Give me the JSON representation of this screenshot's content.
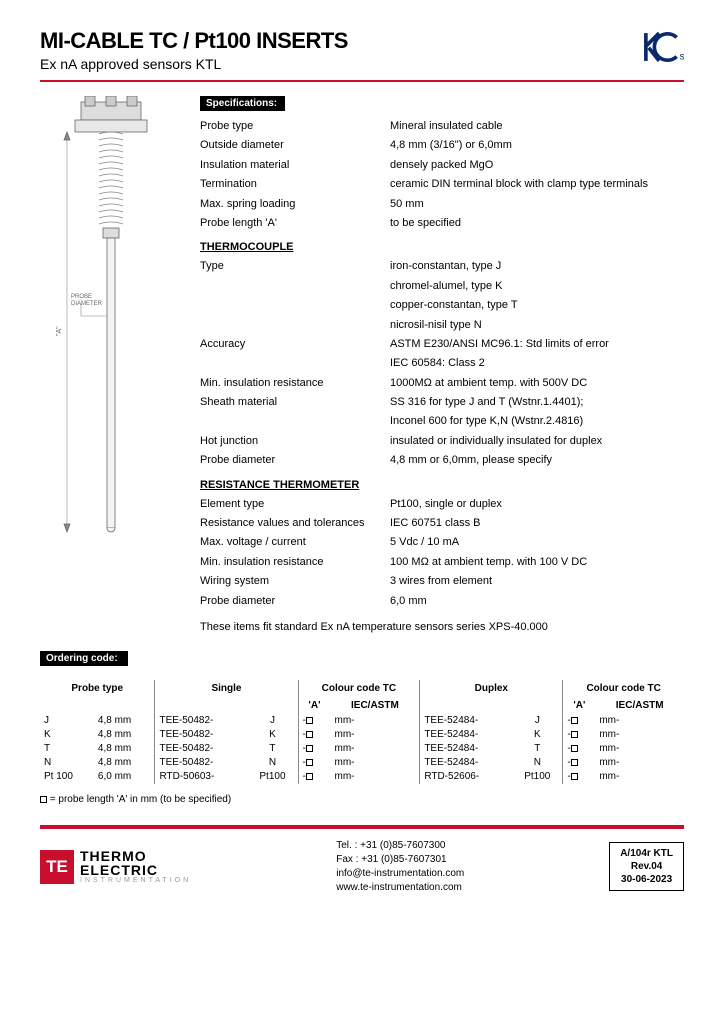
{
  "header": {
    "title": "MI-CABLE TC / Pt100 INSERTS",
    "subtitle": "Ex nA approved sensors KTL"
  },
  "cert": {
    "letters": "KC",
    "suffix": "s",
    "color": "#0a2a6b"
  },
  "specSection": "Specifications:",
  "specs": [
    {
      "l": "Probe type",
      "v": "Mineral insulated cable"
    },
    {
      "l": "Outside diameter",
      "v": "4,8 mm (3/16\") or 6,0mm"
    },
    {
      "l": "Insulation material",
      "v": "densely packed MgO"
    },
    {
      "l": "Termination",
      "v": "ceramic DIN terminal block with clamp type terminals"
    },
    {
      "l": "Max. spring loading",
      "v": "50 mm"
    },
    {
      "l": "Probe length 'A'",
      "v": "to be specified"
    }
  ],
  "tc": {
    "head": "THERMOCOUPLE",
    "rows": [
      {
        "l": "Type",
        "v": "iron-constantan, type J"
      },
      {
        "l": "",
        "v": "chromel-alumel, type K"
      },
      {
        "l": "",
        "v": "copper-constantan, type T"
      },
      {
        "l": "",
        "v": "nicrosil-nisil type N"
      },
      {
        "l": "Accuracy",
        "v": "ASTM E230/ANSI MC96.1: Std limits of error"
      },
      {
        "l": "",
        "v": "IEC 60584: Class 2"
      },
      {
        "l": "Min. insulation resistance",
        "v": "1000MΩ at ambient temp. with 500V DC"
      },
      {
        "l": "Sheath material",
        "v": "SS 316 for type J and T (Wstnr.1.4401);"
      },
      {
        "l": "",
        "v": "Inconel 600 for type K,N (Wstnr.2.4816)"
      },
      {
        "l": "Hot junction",
        "v": "insulated or individually insulated for duplex"
      },
      {
        "l": "Probe diameter",
        "v": "4,8 mm or 6,0mm, please specify"
      }
    ]
  },
  "rt": {
    "head": "RESISTANCE THERMOMETER",
    "rows": [
      {
        "l": "Element type",
        "v": "Pt100, single or duplex"
      },
      {
        "l": "Resistance values and tolerances",
        "v": "IEC 60751 class B"
      },
      {
        "l": "Max. voltage / current",
        "v": "5 Vdc / 10 mA"
      },
      {
        "l": "Min. insulation resistance",
        "v": "100 MΩ at ambient temp. with 100 V DC"
      },
      {
        "l": "Wiring system",
        "v": "3 wires from element"
      },
      {
        "l": "Probe diameter",
        "v": "6,0 mm"
      }
    ]
  },
  "fitnote": "These items fit standard  Ex nA temperature sensors series XPS-40.000",
  "diagram": {
    "aLabel": "\"A\"",
    "probeLabel": "PROBE\nDIAMETER"
  },
  "order": {
    "title": "Ordering code:",
    "headers": {
      "probe": "Probe type",
      "single": "Single",
      "cc": "Colour code TC",
      "duplex": "Duplex",
      "aprime": "'A'",
      "std": "IEC/ASTM"
    },
    "rows": [
      {
        "p": "J",
        "sz": "4,8 mm",
        "s": "TEE-50482-",
        "sc": "J",
        "d": "TEE-52484-",
        "dc": "J"
      },
      {
        "p": "K",
        "sz": "4,8 mm",
        "s": "TEE-50482-",
        "sc": "K",
        "d": "TEE-52484-",
        "dc": "K"
      },
      {
        "p": "T",
        "sz": "4,8 mm",
        "s": "TEE-50482-",
        "sc": "T",
        "d": "TEE-52484-",
        "dc": "T"
      },
      {
        "p": "N",
        "sz": "4,8 mm",
        "s": "TEE-50482-",
        "sc": "N",
        "d": "TEE-52484-",
        "dc": "N"
      },
      {
        "p": "Pt 100",
        "sz": "6,0 mm",
        "s": "RTD-50603-",
        "sc": "Pt100",
        "d": "RTD-52606-",
        "dc": "Pt100"
      }
    ],
    "note": "= probe length 'A' in mm (to be specified)"
  },
  "footer": {
    "logo": {
      "mark": "TE",
      "l1": "THERMO",
      "l2": "ELECTRIC",
      "l3": "INSTRUMENTATION"
    },
    "contact": {
      "tel": "Tel. : +31 (0)85-7607300",
      "fax": "Fax : +31 (0)85-7607301",
      "email": "info@te-instrumentation.com",
      "web": "www.te-instrumentation.com"
    },
    "doc": {
      "code": "A/104r KTL",
      "rev": "Rev.04",
      "date": "30-06-2023"
    }
  },
  "colors": {
    "accent": "#c8102e"
  }
}
